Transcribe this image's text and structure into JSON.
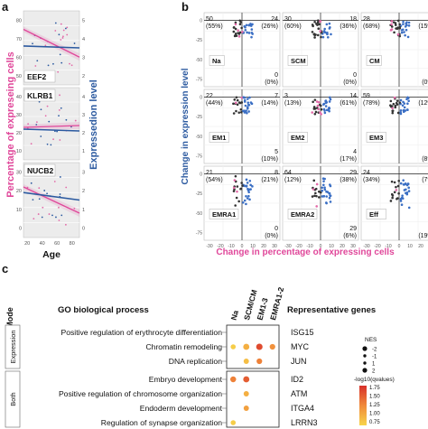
{
  "colors": {
    "pink": "#e0479a",
    "blue": "#2c5aa0",
    "panel_bg": "#ececec",
    "grid": "#ffffff",
    "dot_dark": "#333333",
    "dot_blue": "#3b6fc4",
    "dot_pink": "#e36aa8",
    "heat_low": "#f7d44a",
    "heat_mid": "#f08a3a",
    "heat_high": "#d7302a"
  },
  "panel_a": {
    "label": "a",
    "ylabel_left": "Percentage of expreseing cells",
    "ylabel_right": "Expressedion level",
    "xlabel": "Age",
    "x_ticks": [
      "20",
      "40",
      "60",
      "80"
    ],
    "genes": [
      {
        "name": "EEF2",
        "left_ticks": [
          "50",
          "60",
          "70",
          "80"
        ],
        "right_ticks": [
          "2",
          "3",
          "4",
          "5"
        ]
      },
      {
        "name": "KLRB1",
        "left_ticks": [
          "10",
          "20",
          "30",
          "40"
        ],
        "right_ticks": [
          "1",
          "2",
          "3",
          "4"
        ]
      },
      {
        "name": "NUCB2",
        "left_ticks": [
          "0",
          "10",
          "20",
          "30"
        ],
        "right_ticks": [
          "0",
          "1",
          "2",
          "3"
        ]
      }
    ]
  },
  "panel_b": {
    "label": "b",
    "ylabel": "Change in expression level",
    "xlabel": "Change in percentage of expressing cells",
    "x_ticks": [
      "-30",
      "-20",
      "-10",
      "0",
      "10",
      "20",
      "30"
    ],
    "y_ticks": [
      "0",
      "-25",
      "-50",
      "-75"
    ],
    "cells": [
      {
        "name": "Na",
        "tl": "50",
        "tl_pct": "(55%)",
        "tr": "24",
        "tr_pct": "(26%)",
        "br": "0",
        "br_pct": "(0%)"
      },
      {
        "name": "SCM",
        "tl": "30",
        "tl_pct": "(60%)",
        "tr": "18",
        "tr_pct": "(36%)",
        "br": "0",
        "br_pct": "(0%)"
      },
      {
        "name": "CM",
        "tl": "28",
        "tl_pct": "(68%)",
        "tr": "6",
        "tr_pct": "(15%)",
        "br": "0",
        "br_pct": "(0%)"
      },
      {
        "name": "EM1",
        "tl": "22",
        "tl_pct": "(44%)",
        "tr": "7",
        "tr_pct": "(14%)",
        "br": "5",
        "br_pct": "(10%)"
      },
      {
        "name": "EM2",
        "tl": "3",
        "tl_pct": "(13%)",
        "tr": "14",
        "tr_pct": "(61%)",
        "br": "4",
        "br_pct": "(17%)"
      },
      {
        "name": "EM3",
        "tl": "59",
        "tl_pct": "(78%)",
        "tr": "9",
        "tr_pct": "(12%)",
        "br": "6",
        "br_pct": "(8%)"
      },
      {
        "name": "EMRA1",
        "tl": "21",
        "tl_pct": "(54%)",
        "tr": "8",
        "tr_pct": "(21%)",
        "br": "0",
        "br_pct": "(0%)"
      },
      {
        "name": "EMRA2",
        "tl": "64",
        "tl_pct": "(12%)",
        "tr": "29",
        "tr_pct": "(38%)",
        "br": "29",
        "br_pct": "(6%)"
      },
      {
        "name": "Eff",
        "tl": "24",
        "tl_pct": "(34%)",
        "tr": "20",
        "tr_pct": "(7%)",
        "br": "4",
        "br_pct": "(19%)"
      }
    ]
  },
  "panel_c": {
    "label": "c",
    "mode_header": "Mode",
    "process_header": "GO  biological process",
    "genes_header": "Representative genes",
    "columns": [
      "Na",
      "SCM/CM",
      "EM1-3",
      "EMRA1-2"
    ],
    "groups": [
      {
        "mode": "Expression",
        "rows": [
          {
            "process": "Positive regulation of erythrocyte differentiation",
            "gene": "ISG15"
          },
          {
            "process": "Chromatin remodeling",
            "gene": "MYC"
          },
          {
            "process": "DNA replication",
            "gene": "JUN"
          }
        ]
      },
      {
        "mode": "Both",
        "rows": [
          {
            "process": "Embryo development",
            "gene": "ID2"
          },
          {
            "process": "Positive regulation of chromosome organization",
            "gene": "ATM"
          },
          {
            "process": "Endoderm development",
            "gene": "ITGA4"
          },
          {
            "process": "Regulation of synapse organization",
            "gene": "LRRN3"
          }
        ]
      }
    ],
    "nes_legend": {
      "title": "NES",
      "ticks": [
        "-2",
        "-1",
        "1",
        "2"
      ]
    },
    "color_legend": {
      "title": "-log10(qvalues)",
      "ticks": [
        "1.75",
        "1.50",
        "1.25",
        "1.00",
        "0.75"
      ]
    }
  },
  "chart_data": [
    {
      "type": "scatter",
      "panel": "a",
      "xlabel": "Age",
      "ylabel": "Percentage of expreseing cells",
      "y2label": "Expressedion level",
      "xlim": [
        15,
        90
      ],
      "series": [
        {
          "name": "EEF2",
          "pct_trend": [
            [
              15,
              75
            ],
            [
              90,
              60
            ]
          ],
          "expr_trend": [
            [
              15,
              3.6
            ],
            [
              90,
              3.5
            ]
          ]
        },
        {
          "name": "KLRB1",
          "pct_trend": [
            [
              15,
              23
            ],
            [
              90,
              24
            ]
          ],
          "expr_trend": [
            [
              15,
              2.2
            ],
            [
              90,
              2.1
            ]
          ]
        },
        {
          "name": "NUCB2",
          "pct_trend": [
            [
              15,
              22
            ],
            [
              90,
              8
            ]
          ],
          "expr_trend": [
            [
              15,
              1.9
            ],
            [
              90,
              1.5
            ]
          ]
        }
      ]
    },
    {
      "type": "scatter",
      "panel": "b",
      "xlabel": "Change in percentage of expressing cells",
      "ylabel": "Change in expression level",
      "xlim": [
        -35,
        35
      ],
      "ylim": [
        -85,
        10
      ],
      "subplots": [
        "Na",
        "SCM",
        "CM",
        "EM1",
        "EM2",
        "EM3",
        "EMRA1",
        "EMRA2",
        "Eff"
      ]
    },
    {
      "type": "heatmap",
      "panel": "c",
      "columns": [
        "Na",
        "SCM/CM",
        "EM1-3",
        "EMRA1-2"
      ],
      "rows": [
        "Positive regulation of erythrocyte differentiation",
        "Chromatin remodeling",
        "DNA replication",
        "Embryo development",
        "Positive regulation of chromosome organization",
        "Endoderm development",
        "Regulation of synapse organization"
      ],
      "cells": [
        {
          "row": 1,
          "col": 0,
          "nes": 1.2,
          "q": 0.8
        },
        {
          "row": 1,
          "col": 1,
          "nes": 1.6,
          "q": 1.0
        },
        {
          "row": 1,
          "col": 2,
          "nes": 1.7,
          "q": 1.6
        },
        {
          "row": 1,
          "col": 3,
          "nes": 1.4,
          "q": 1.2
        },
        {
          "row": 2,
          "col": 1,
          "nes": 1.3,
          "q": 0.9
        },
        {
          "row": 2,
          "col": 2,
          "nes": 1.4,
          "q": 1.3
        },
        {
          "row": 3,
          "col": 0,
          "nes": 1.5,
          "q": 1.3
        },
        {
          "row": 3,
          "col": 1,
          "nes": 1.6,
          "q": 1.5
        },
        {
          "row": 4,
          "col": 1,
          "nes": 1.3,
          "q": 1.0
        },
        {
          "row": 5,
          "col": 1,
          "nes": 1.3,
          "q": 1.1
        },
        {
          "row": 6,
          "col": 0,
          "nes": 1.2,
          "q": 0.8
        }
      ]
    }
  ]
}
